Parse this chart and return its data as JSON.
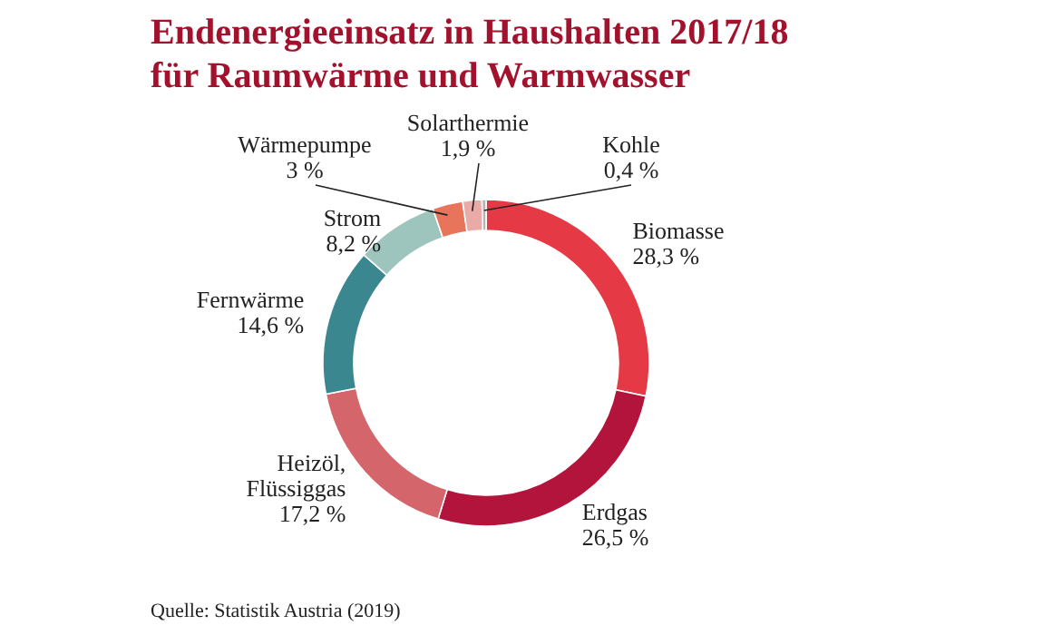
{
  "chart_data": {
    "type": "donut",
    "title": "Endenergieeinsatz in Haushalten 2017/18\nfür Raumwärme und Warmwasser",
    "categories": [
      "Biomasse",
      "Erdgas",
      "Heizöl,\nFlüssiggas",
      "Fernwärme",
      "Strom",
      "Wärmepumpe",
      "Solarthermie",
      "Kohle"
    ],
    "values": [
      28.3,
      26.5,
      17.2,
      14.6,
      8.2,
      3,
      1.9,
      0.4
    ],
    "value_labels": [
      "28,3 %",
      "26,5 %",
      "17,2 %",
      "14,6 %",
      "8,2 %",
      "3 %",
      "1,9 %",
      "0,4 %"
    ],
    "colors": [
      "#e53a46",
      "#b3143c",
      "#d4656b",
      "#3b8790",
      "#9ec5bd",
      "#e8745c",
      "#e9aaa8",
      "#b9b3b0"
    ],
    "annotations": [
      "Quelle: Statistik Austria (2019)"
    ]
  }
}
